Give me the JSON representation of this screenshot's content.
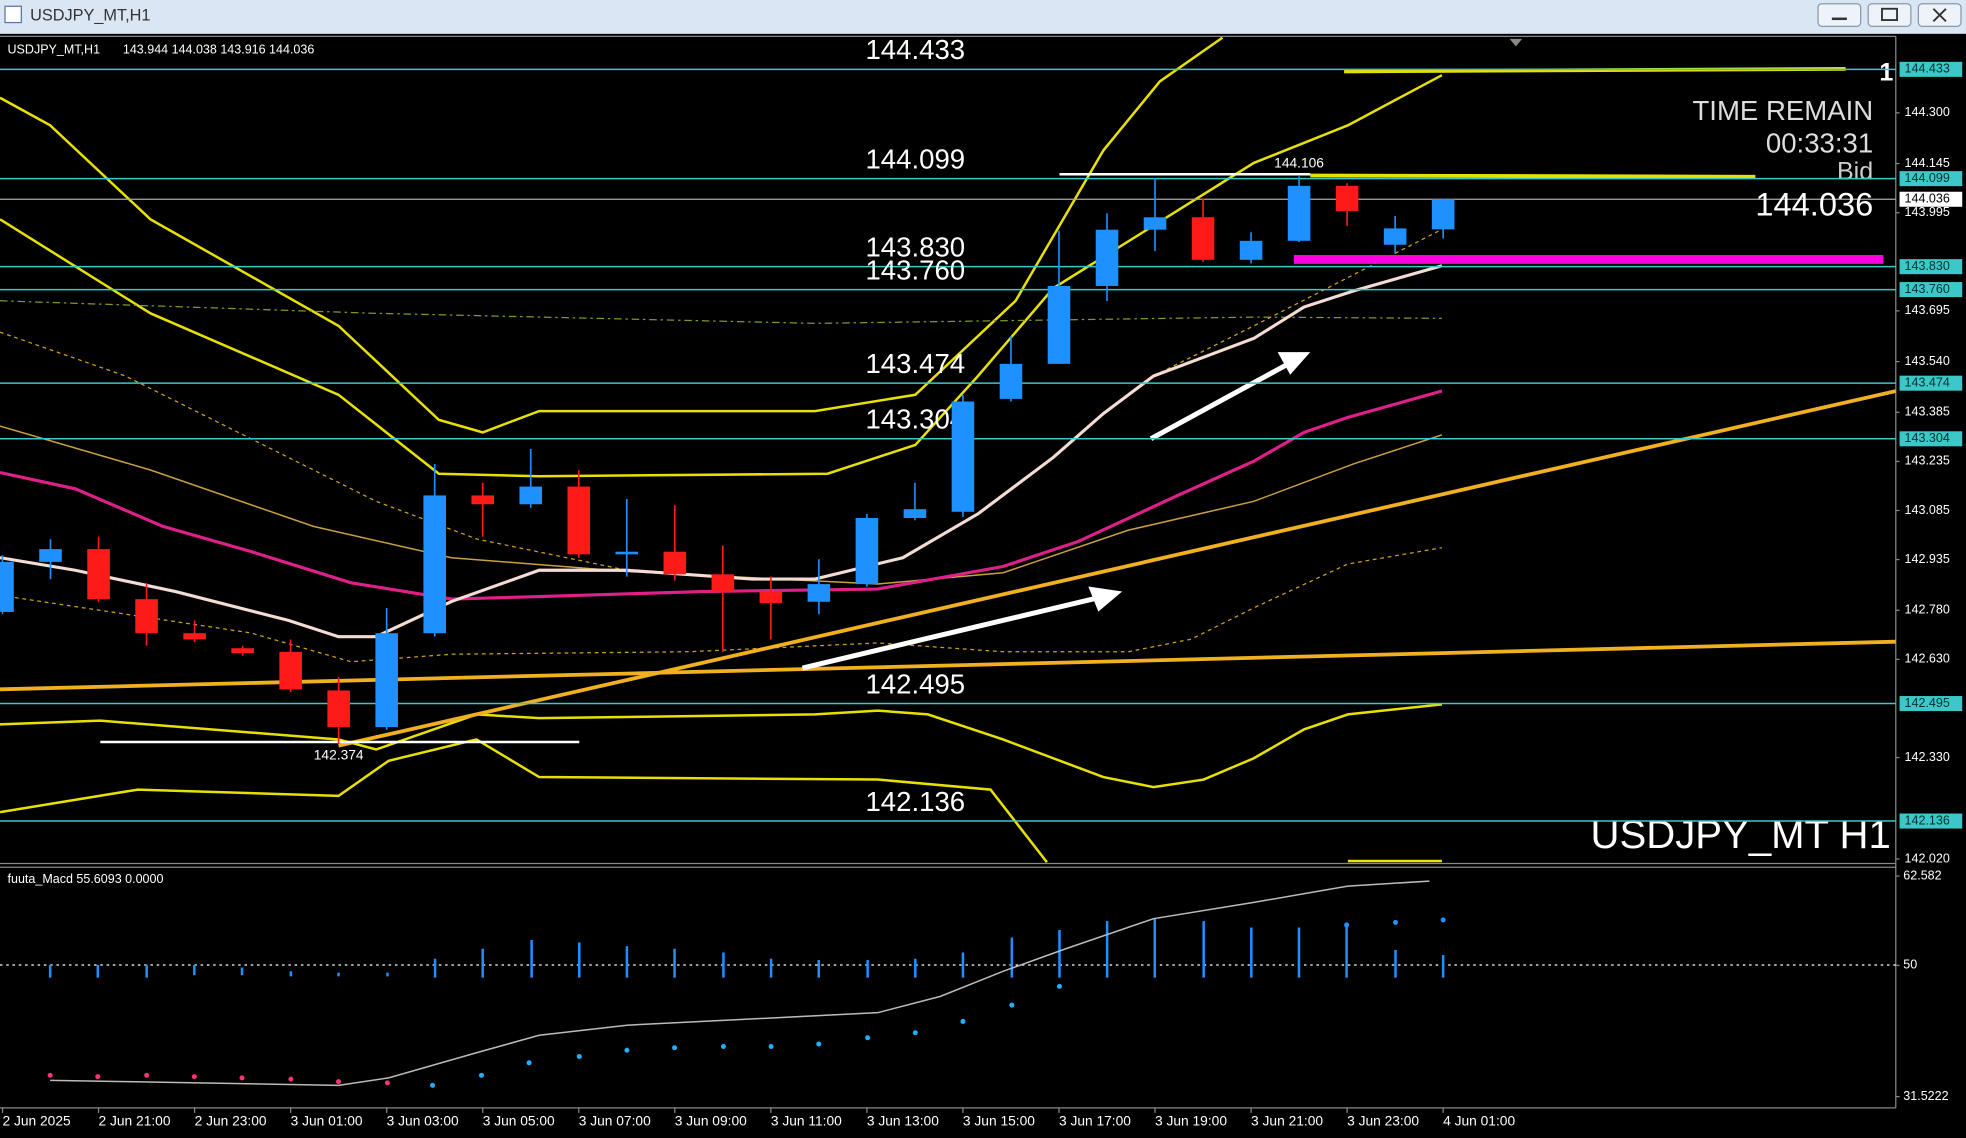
{
  "window": {
    "title": "USDJPY_MT,H1"
  },
  "chart_data": {
    "type": "candlestick",
    "symbol": "USDJPY_MT,H1",
    "ohlc_header": "143.944 144.038 143.916 144.036",
    "watermark": "USDJPY_MT H1",
    "up_color": "#1e90ff",
    "down_color": "#ff1a1a",
    "level_color": "#3cc8c8",
    "categories": [
      "2 Jun 2025",
      null,
      "2 Jun 21:00",
      null,
      "2 Jun 23:00",
      null,
      "3 Jun 01:00",
      null,
      "3 Jun 03:00",
      null,
      "3 Jun 05:00",
      null,
      "3 Jun 07:00",
      null,
      "3 Jun 09:00",
      null,
      "3 Jun 11:00",
      null,
      "3 Jun 13:00",
      null,
      "3 Jun 15:00",
      null,
      "3 Jun 17:00",
      null,
      "3 Jun 19:00",
      null,
      "3 Jun 21:00",
      null,
      "3 Jun 23:00",
      null,
      "4 Jun 01:00"
    ],
    "open": [
      142.775,
      142.928,
      142.967,
      142.814,
      142.71,
      142.664,
      142.653,
      142.535,
      142.423,
      142.71,
      143.131,
      143.104,
      143.158,
      142.951,
      142.959,
      142.89,
      142.837,
      142.806,
      142.86,
      143.062,
      143.081,
      143.426,
      143.533,
      143.771,
      143.943,
      143.981,
      143.851,
      143.909,
      144.077,
      143.897,
      143.944
    ],
    "high": [
      142.948,
      142.997,
      143.005,
      142.863,
      142.749,
      142.672,
      142.691,
      142.576,
      142.787,
      143.227,
      143.17,
      143.273,
      143.208,
      143.12,
      143.101,
      142.978,
      142.883,
      142.936,
      143.074,
      143.17,
      143.438,
      143.618,
      143.94,
      143.993,
      144.1,
      144.039,
      143.935,
      144.106,
      144.085,
      143.985,
      144.038
    ],
    "low": [
      142.768,
      142.875,
      142.805,
      142.672,
      142.683,
      142.641,
      142.53,
      142.374,
      142.415,
      142.7,
      143.005,
      143.093,
      142.94,
      142.883,
      142.871,
      142.653,
      142.691,
      142.768,
      142.852,
      143.055,
      143.066,
      143.418,
      143.533,
      143.725,
      143.878,
      143.845,
      143.84,
      143.905,
      143.954,
      143.87,
      143.916
    ],
    "close": [
      142.928,
      142.967,
      142.814,
      142.71,
      142.691,
      142.649,
      142.538,
      142.423,
      142.71,
      143.131,
      143.104,
      143.158,
      142.951,
      142.959,
      142.89,
      142.837,
      142.802,
      142.86,
      143.062,
      143.089,
      143.418,
      143.533,
      143.771,
      143.943,
      143.981,
      143.851,
      143.909,
      144.077,
      144.0,
      143.947,
      144.036
    ],
    "ylim": [
      142.01,
      144.53
    ],
    "yticks": [
      {
        "value": 144.3,
        "label": "144.300"
      },
      144.145,
      143.995,
      143.695,
      {
        "value": 143.54,
        "label": "143.540"
      },
      143.385,
      143.235,
      143.085,
      142.935,
      {
        "value": 142.78,
        "label": "142.780"
      },
      {
        "value": 142.63,
        "label": "142.630"
      },
      {
        "value": 142.33,
        "label": "142.330"
      },
      {
        "value": 142.02,
        "label": "142.020"
      }
    ],
    "levels": [
      144.433,
      144.099,
      {
        "value": 143.83,
        "label": "143.830"
      },
      {
        "value": 143.76,
        "label": "143.760"
      },
      143.474,
      143.304,
      142.495,
      142.136
    ],
    "bid": 144.036,
    "bid_label": "Bid",
    "time_remain_label": "TIME REMAIN",
    "time_remain": "00:33:31",
    "macd": {
      "label": "fuuta_Macd 55.6093  0.0000",
      "ylim": [
        29.93,
        63.82
      ],
      "yticks": [
        62.582,
        50,
        31.5222
      ]
    }
  }
}
